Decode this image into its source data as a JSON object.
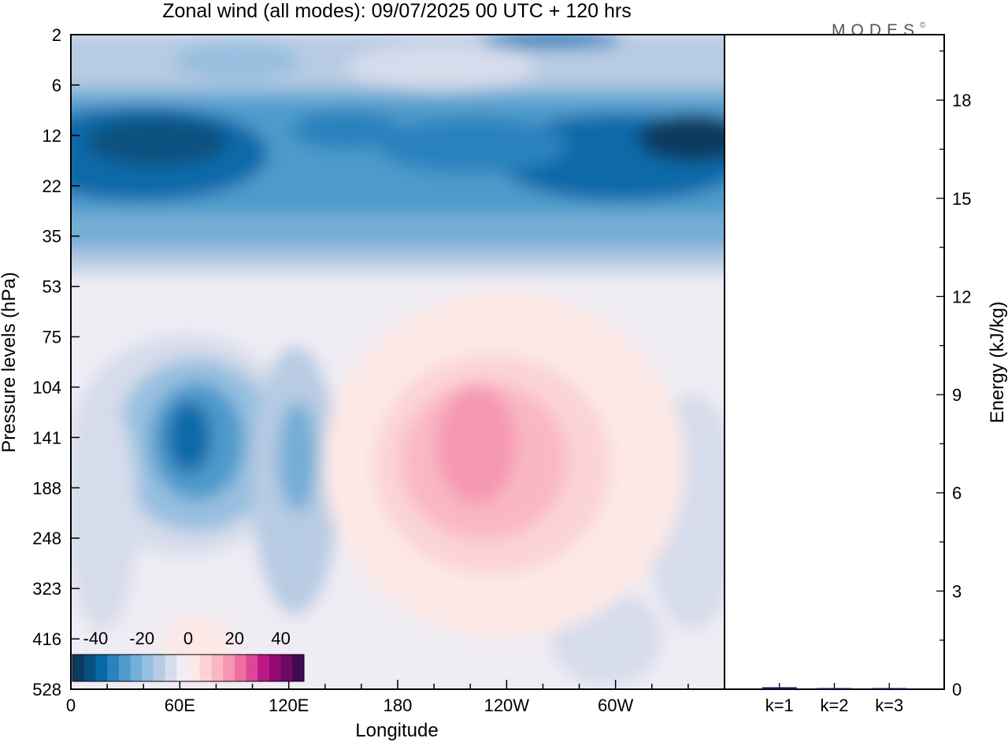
{
  "title": "Zonal wind (all modes):  09/07/2025  00 UTC  + 120 hrs",
  "logo": "MODES",
  "logo_mark": "©",
  "chart_data": [
    {
      "type": "heatmap",
      "title": "Zonal wind (all modes):  09/07/2025  00 UTC  + 120 hrs",
      "xlabel": "Longitude",
      "ylabel": "Pressure levels (hPa)",
      "x_ticks": [
        "0",
        "60E",
        "120E",
        "180",
        "120W",
        "60W"
      ],
      "x_tick_lon": [
        0,
        60,
        120,
        180,
        240,
        300
      ],
      "xlim": [
        0,
        360
      ],
      "y_ticks": [
        "2",
        "6",
        "12",
        "22",
        "35",
        "53",
        "75",
        "104",
        "141",
        "188",
        "248",
        "323",
        "416",
        "528"
      ],
      "y_axis_reversed": true,
      "colorbar": {
        "tick_labels": [
          "-40",
          "-20",
          "0",
          "20",
          "40"
        ],
        "levels": [
          -45,
          -40,
          -35,
          -30,
          -25,
          -20,
          -15,
          -10,
          -5,
          0,
          5,
          10,
          15,
          20,
          25,
          30,
          35,
          40,
          45
        ],
        "colors": [
          "#0b3b5e",
          "#08517f",
          "#0969a8",
          "#2a82bd",
          "#4e9acb",
          "#73aed6",
          "#97bfdf",
          "#b7cbe3",
          "#d6dceb",
          "#efecf4",
          "#fde9e6",
          "#fbd3d6",
          "#f9b7c3",
          "#f597b2",
          "#ef6fa3",
          "#de4596",
          "#bb1a86",
          "#930974",
          "#6b0a63",
          "#3f0b55"
        ],
        "placement": "bottom-left"
      },
      "fields": [
        {
          "lon": 0,
          "level": "12",
          "value": -30
        },
        {
          "lon": 340,
          "level": "12",
          "value": -35
        },
        {
          "lon": 60,
          "level": "141",
          "value": -25
        },
        {
          "lon": 120,
          "level": "141",
          "value": -15
        },
        {
          "lon": 205,
          "level": "141",
          "value": 15
        },
        {
          "lon": 60,
          "level": "6",
          "value": -5
        }
      ]
    },
    {
      "type": "bar",
      "ylabel": "Energy (kJ/kg)",
      "categories": [
        "k=1",
        "k=2",
        "k=3"
      ],
      "values": [
        0.06,
        0.02,
        0.01
      ],
      "ylim": [
        0,
        20
      ],
      "y_ticks": [
        0,
        3,
        6,
        9,
        12,
        15,
        18
      ],
      "colors": [
        "#13135e",
        "#13135e",
        "#13135e"
      ]
    }
  ]
}
